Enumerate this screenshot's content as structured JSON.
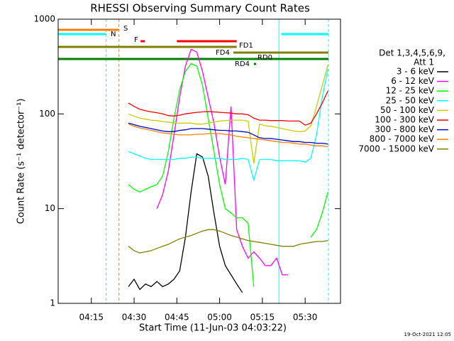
{
  "chart_data": {
    "type": "line",
    "title": "RHESSI Observing Summary Count Rates",
    "xlabel": "Start Time (11-Jun-03 04:03:22)",
    "ylabel": "Count Rate (s⁻¹ detector⁻¹)",
    "footer": "19-Oct-2021 12:05",
    "legend_title": [
      "Det 1,3,4,5,6,9,",
      "Att 1"
    ],
    "legend": "right",
    "ylog": true,
    "xlim": [
      243.37,
      342.4
    ],
    "xticks": [
      {
        "value": 255,
        "label": "04:15"
      },
      {
        "value": 270,
        "label": "04:30"
      },
      {
        "value": 285,
        "label": "04:45"
      },
      {
        "value": 300,
        "label": "05:00"
      },
      {
        "value": 315,
        "label": "05:15"
      },
      {
        "value": 330,
        "label": "05:30"
      }
    ],
    "ylim": [
      1,
      1000
    ],
    "yticks": [
      1,
      10,
      100,
      1000
    ],
    "x": [
      268,
      270,
      272,
      274,
      276,
      278,
      280,
      282,
      284,
      286,
      288,
      290,
      292,
      294,
      296,
      298,
      300,
      302,
      304,
      306,
      308,
      310,
      312,
      314,
      316,
      318,
      320,
      322,
      324,
      326,
      328,
      330,
      332,
      334,
      336,
      338
    ],
    "series": [
      {
        "name": "3 - 6 keV",
        "color": "#000000",
        "values": [
          1.5,
          1.8,
          1.4,
          1.6,
          1.5,
          1.7,
          1.5,
          1.6,
          1.8,
          2.2,
          5,
          15,
          38,
          35,
          22,
          9,
          4,
          2.5,
          2,
          1.6,
          1.3,
          null,
          null,
          null,
          null,
          null,
          null,
          null,
          null,
          null,
          null,
          null,
          null,
          null,
          null,
          null
        ]
      },
      {
        "name": "6 - 12 keV",
        "color": "#ff00ff",
        "values": [
          null,
          null,
          null,
          null,
          null,
          10,
          14,
          25,
          60,
          150,
          320,
          480,
          450,
          280,
          150,
          80,
          35,
          18,
          120,
          6,
          4,
          3,
          3.5,
          3,
          2.5,
          2.5,
          3,
          2,
          2,
          null,
          null,
          null,
          null,
          null,
          null,
          null
        ]
      },
      {
        "name": "12 - 25 keV",
        "color": "#00ff00",
        "values": [
          18,
          16,
          15,
          16,
          17,
          18,
          22,
          40,
          90,
          180,
          280,
          340,
          320,
          200,
          90,
          40,
          18,
          10,
          9,
          8,
          8,
          7,
          1.5,
          null,
          null,
          null,
          null,
          null,
          null,
          null,
          null,
          null,
          5,
          6,
          9,
          15
        ]
      },
      {
        "name": "25 - 50 keV",
        "color": "#00ffff",
        "values": [
          40,
          38,
          36,
          34,
          33,
          33,
          33,
          33,
          33,
          34,
          34,
          35,
          35,
          34,
          34,
          34,
          34,
          33,
          33,
          33,
          34,
          33,
          20,
          33,
          33,
          33,
          32,
          32,
          32,
          32,
          32,
          31,
          34,
          60,
          150,
          300
        ]
      },
      {
        "name": "50 - 100 keV",
        "color": "#cccc00",
        "values": [
          100,
          95,
          90,
          88,
          86,
          85,
          83,
          82,
          80,
          80,
          80,
          80,
          78,
          78,
          80,
          82,
          84,
          85,
          86,
          86,
          86,
          84,
          30,
          78,
          75,
          74,
          72,
          70,
          68,
          66,
          65,
          66,
          75,
          120,
          200,
          330
        ]
      },
      {
        "name": "100 - 300 keV",
        "color": "#ff0000",
        "values": [
          130,
          120,
          112,
          108,
          105,
          103,
          100,
          96,
          95,
          97,
          100,
          102,
          104,
          105,
          106,
          105,
          104,
          103,
          102,
          100,
          100,
          98,
          90,
          86,
          86,
          85,
          85,
          85,
          84,
          84,
          84,
          76,
          80,
          100,
          130,
          175
        ]
      },
      {
        "name": "300 - 800 keV",
        "color": "#0000cc",
        "values": [
          80,
          77,
          74,
          72,
          70,
          68,
          66,
          65,
          65,
          67,
          68,
          70,
          70,
          70,
          69,
          68,
          67,
          67,
          66,
          66,
          65,
          64,
          60,
          56,
          55,
          55,
          54,
          53,
          52,
          51,
          51,
          50,
          50,
          49,
          49,
          48
        ]
      },
      {
        "name": "800 - 7000 keV",
        "color": "#ff8000",
        "values": [
          78,
          74,
          71,
          69,
          67,
          65,
          63,
          62,
          61,
          60,
          60,
          60,
          61,
          61,
          62,
          62,
          62,
          61,
          60,
          58,
          57,
          56,
          55,
          54,
          53,
          52,
          51,
          50,
          50,
          49,
          48,
          48,
          47,
          46,
          46,
          45
        ]
      },
      {
        "name": "7000 - 15000 keV",
        "color": "#808000",
        "values": [
          4,
          3.6,
          3.4,
          3.5,
          3.6,
          3.8,
          4,
          4.2,
          4.5,
          4.8,
          5,
          5.2,
          5.5,
          5.8,
          6,
          6,
          5.8,
          5.5,
          5.2,
          5,
          4.8,
          4.6,
          4.5,
          4.4,
          4.3,
          4.2,
          4.1,
          4,
          4,
          4,
          4.2,
          4.3,
          4.4,
          4.5,
          4.5,
          4.6
        ]
      }
    ],
    "flags": [
      {
        "label": "S",
        "color": "#ff8000",
        "spans": [
          [
            243.37,
            264.7
          ]
        ]
      },
      {
        "label": "N",
        "color": "#00ffff",
        "spans": [
          [
            243.37,
            260.2
          ],
          [
            321.6,
            338.2
          ]
        ]
      },
      {
        "label": "F",
        "color": "#ff0000",
        "spans": [
          [
            272.3,
            273.8
          ],
          [
            285,
            306
          ]
        ]
      },
      {
        "label": "FD1",
        "color": "#808000",
        "spans": [
          [
            243.37,
            306
          ]
        ]
      },
      {
        "label": "FD4",
        "color": "#808000",
        "spans": [
          [
            304.8,
            338.2
          ]
        ]
      },
      {
        "label": "RD0",
        "color": "#008000",
        "spans": [
          [
            243.37,
            338.2
          ]
        ]
      },
      {
        "label": "RD4",
        "color": "#008000",
        "spans": [
          [
            312,
            312.8
          ]
        ]
      }
    ],
    "vlines": [
      {
        "x": 260.2,
        "color": "#00ffff",
        "dashed": true
      },
      {
        "x": 264.7,
        "color": "#ff8000",
        "dashed": true
      },
      {
        "x": 320.8,
        "color": "#00ffff",
        "dashed": false
      },
      {
        "x": 338.2,
        "color": "#00ffff",
        "dashed": true
      }
    ]
  }
}
